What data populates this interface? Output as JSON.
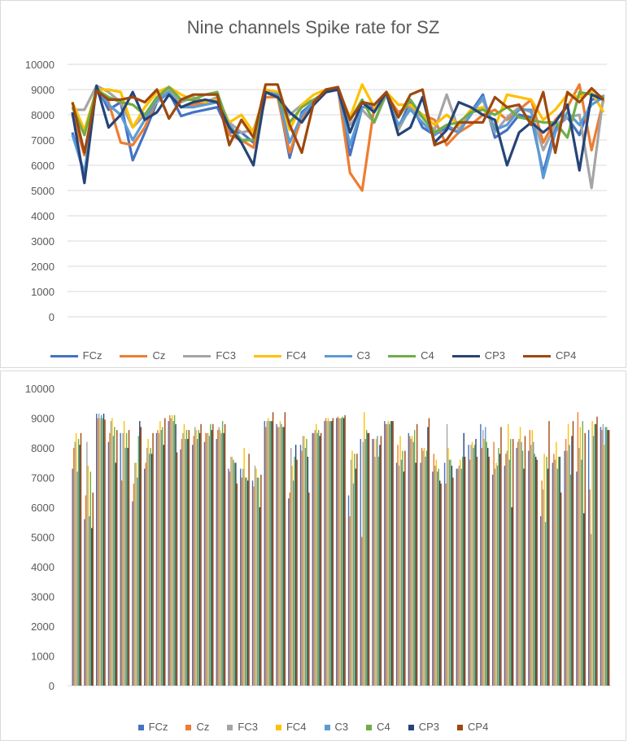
{
  "chart_data": [
    {
      "type": "line",
      "title": "Nine channels Spike rate for SZ",
      "xlabel": "",
      "ylabel": "",
      "ylim": [
        0,
        10000
      ],
      "yticks": [
        0,
        1000,
        2000,
        3000,
        4000,
        5000,
        6000,
        7000,
        8000,
        9000,
        10000
      ],
      "grid": true,
      "legend": "bottom",
      "series_ref": "shared"
    },
    {
      "type": "bar",
      "title": "",
      "xlabel": "",
      "ylabel": "",
      "ylim": [
        0,
        10000
      ],
      "yticks": [
        0,
        1000,
        2000,
        3000,
        4000,
        5000,
        6000,
        7000,
        8000,
        9000,
        10000
      ],
      "grid": false,
      "legend": "bottom",
      "series_ref": "shared"
    }
  ],
  "series": [
    {
      "name": "FCz",
      "color": "#4472C4",
      "values": [
        7300,
        5600,
        9150,
        8200,
        8500,
        6200,
        7300,
        8500,
        8900,
        7950,
        8100,
        8200,
        8300,
        7300,
        7300,
        6900,
        8900,
        8800,
        6300,
        8100,
        8500,
        8900,
        9000,
        6400,
        8300,
        8300,
        8900,
        7500,
        8500,
        7500,
        7200,
        7500,
        7300,
        8100,
        8800,
        7100,
        7400,
        8000,
        7900,
        5700,
        7500,
        7900,
        7200,
        8600,
        8700
      ]
    },
    {
      "name": "Cz",
      "color": "#ED7D31",
      "values": [
        8000,
        6400,
        9000,
        8500,
        6900,
        6800,
        7500,
        8600,
        9100,
        8300,
        8400,
        8500,
        8600,
        7200,
        7000,
        6700,
        8700,
        8700,
        6500,
        7900,
        8500,
        9000,
        9050,
        5700,
        5000,
        8300,
        8800,
        8100,
        8400,
        8000,
        7800,
        6800,
        7300,
        7600,
        8000,
        8200,
        7800,
        8200,
        8600,
        6900,
        7800,
        8300,
        9200,
        6600,
        8600
      ]
    },
    {
      "name": "FC3",
      "color": "#A5A5A5",
      "values": [
        8200,
        8200,
        9150,
        8900,
        8500,
        7500,
        8000,
        8500,
        9000,
        8500,
        8700,
        8500,
        8700,
        7700,
        7300,
        7400,
        8900,
        8700,
        8000,
        8400,
        8600,
        8900,
        9000,
        7600,
        8200,
        7700,
        8800,
        7400,
        8300,
        7900,
        7400,
        8800,
        7400,
        8100,
        8600,
        7300,
        7900,
        8300,
        8100,
        6600,
        7600,
        7900,
        8000,
        5100,
        8800
      ]
    },
    {
      "name": "FC4",
      "color": "#FFC000",
      "values": [
        8500,
        7400,
        9000,
        9000,
        8900,
        7500,
        8300,
        8900,
        9100,
        8800,
        8600,
        8500,
        8600,
        7700,
        8000,
        7300,
        9000,
        8900,
        7400,
        8400,
        8800,
        9000,
        9000,
        7900,
        9200,
        8300,
        8900,
        8400,
        8400,
        8000,
        7600,
        8000,
        7600,
        8200,
        8300,
        7500,
        8800,
        8700,
        8600,
        7800,
        8200,
        8800,
        8700,
        8900,
        8100
      ]
    },
    {
      "name": "C3",
      "color": "#5B9BD5",
      "values": [
        7200,
        5700,
        9100,
        8400,
        8000,
        7000,
        7800,
        8600,
        8900,
        8300,
        8300,
        8400,
        8500,
        7600,
        7000,
        7000,
        8900,
        8800,
        6900,
        8000,
        8500,
        8900,
        9000,
        6800,
        8300,
        8400,
        8800,
        7600,
        8200,
        7700,
        7200,
        7600,
        7300,
        8000,
        8700,
        7400,
        7600,
        8200,
        8200,
        5500,
        7300,
        8100,
        7600,
        8400,
        8700
      ]
    },
    {
      "name": "C4",
      "color": "#70AD47",
      "values": [
        8300,
        7200,
        9000,
        8700,
        8500,
        8400,
        8000,
        8700,
        9100,
        8600,
        8600,
        8800,
        8900,
        7500,
        7000,
        7000,
        8900,
        8700,
        7700,
        8300,
        8600,
        8900,
        9050,
        7800,
        8600,
        7700,
        8900,
        7900,
        8600,
        7900,
        7300,
        7600,
        7700,
        8100,
        8200,
        8000,
        8300,
        7900,
        7800,
        7700,
        7700,
        7100,
        8900,
        8800,
        8700
      ]
    },
    {
      "name": "CP3",
      "color": "#264478",
      "values": [
        8100,
        5300,
        9150,
        7500,
        8000,
        8900,
        7800,
        8100,
        8800,
        8300,
        8500,
        8600,
        8500,
        7500,
        6900,
        6000,
        8900,
        8700,
        8100,
        7700,
        8400,
        8900,
        9000,
        7300,
        8500,
        8100,
        8900,
        7200,
        7500,
        8700,
        6900,
        7400,
        8500,
        8300,
        8000,
        7800,
        6000,
        7300,
        7700,
        7300,
        7700,
        8400,
        5800,
        8800,
        8600
      ]
    },
    {
      "name": "CP4",
      "color": "#9E480E",
      "values": [
        8500,
        6500,
        8950,
        8600,
        8600,
        8700,
        8500,
        9000,
        7850,
        8600,
        8800,
        8800,
        8800,
        6800,
        7800,
        7100,
        9200,
        9200,
        7600,
        6500,
        8500,
        9000,
        9100,
        7800,
        8500,
        8400,
        8900,
        7900,
        8800,
        9000,
        6800,
        7000,
        7700,
        7700,
        7700,
        8700,
        8300,
        8400,
        7600,
        8900,
        6500,
        8900,
        8500,
        9050,
        8600
      ]
    }
  ]
}
